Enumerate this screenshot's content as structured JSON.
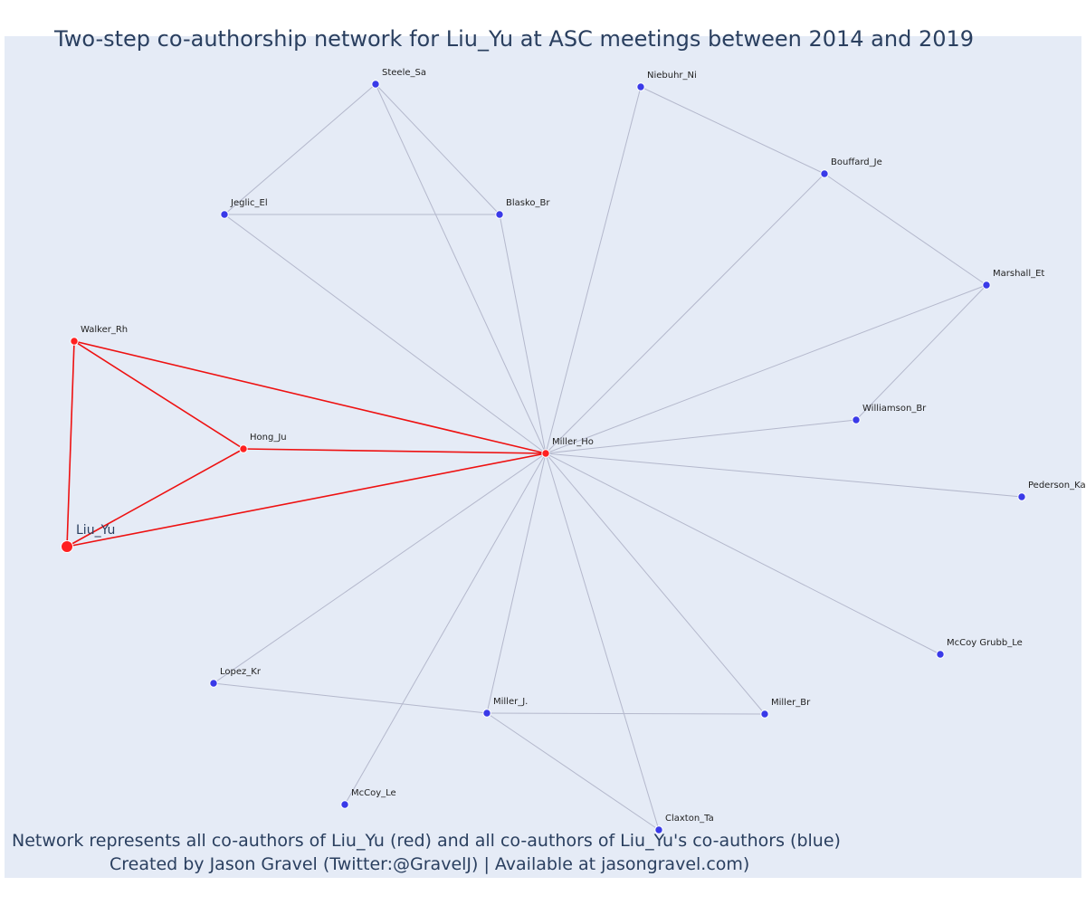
{
  "title": "Two-step co-authorship network for Liu_Yu at ASC meetings between 2014 and 2019",
  "caption_line1": "Network represents all co-authors of Liu_Yu (red) and all co-authors of Liu_Yu's co-authors (blue)",
  "caption_line2": "Created by Jason Gravel (Twitter:@GravelJ) | Available at jasongravel.com)",
  "colors": {
    "focal": "#ff2020",
    "coauthor": "#3a3ae8",
    "edge_primary": "#ee1111",
    "edge_secondary": "#b4b8cc",
    "background": "#e5ebf6",
    "text": "#2a3f5f"
  },
  "nodes": [
    {
      "id": "Liu_Yu",
      "label": "Liu_Yu",
      "group": "primary",
      "focal": true
    },
    {
      "id": "Walker_Rh",
      "label": "Walker_Rh",
      "group": "primary"
    },
    {
      "id": "Hong_Ju",
      "label": "Hong_Ju",
      "group": "primary"
    },
    {
      "id": "Miller_Ho",
      "label": "Miller_Ho",
      "group": "primary"
    },
    {
      "id": "Steele_Sa",
      "label": "Steele_Sa",
      "group": "secondary"
    },
    {
      "id": "Jeglic_El",
      "label": "Jeglic_El",
      "group": "secondary"
    },
    {
      "id": "Blasko_Br",
      "label": "Blasko_Br",
      "group": "secondary"
    },
    {
      "id": "Niebuhr_Ni",
      "label": "Niebuhr_Ni",
      "group": "secondary"
    },
    {
      "id": "Bouffard_Je",
      "label": "Bouffard_Je",
      "group": "secondary"
    },
    {
      "id": "Marshall_Et",
      "label": "Marshall_Et",
      "group": "secondary"
    },
    {
      "id": "Williamson_Br",
      "label": "Williamson_Br",
      "group": "secondary"
    },
    {
      "id": "Pederson_Ka",
      "label": "Pederson_Ka",
      "group": "secondary"
    },
    {
      "id": "McCoy Grubb_Le",
      "label": "McCoy Grubb_Le",
      "group": "secondary"
    },
    {
      "id": "Miller_Br",
      "label": "Miller_Br",
      "group": "secondary"
    },
    {
      "id": "Claxton_Ta",
      "label": "Claxton_Ta",
      "group": "secondary"
    },
    {
      "id": "Miller_J.",
      "label": "Miller_J.",
      "group": "secondary"
    },
    {
      "id": "McCoy_Le",
      "label": "McCoy_Le",
      "group": "secondary"
    },
    {
      "id": "Lopez_Kr",
      "label": "Lopez_Kr",
      "group": "secondary"
    }
  ],
  "edges": [
    [
      "Liu_Yu",
      "Walker_Rh"
    ],
    [
      "Liu_Yu",
      "Hong_Ju"
    ],
    [
      "Liu_Yu",
      "Miller_Ho"
    ],
    [
      "Walker_Rh",
      "Hong_Ju"
    ],
    [
      "Walker_Rh",
      "Miller_Ho"
    ],
    [
      "Hong_Ju",
      "Miller_Ho"
    ],
    [
      "Steele_Sa",
      "Jeglic_El"
    ],
    [
      "Steele_Sa",
      "Blasko_Br"
    ],
    [
      "Steele_Sa",
      "Miller_Ho"
    ],
    [
      "Jeglic_El",
      "Blasko_Br"
    ],
    [
      "Jeglic_El",
      "Miller_Ho"
    ],
    [
      "Blasko_Br",
      "Miller_Ho"
    ],
    [
      "Niebuhr_Ni",
      "Bouffard_Je"
    ],
    [
      "Niebuhr_Ni",
      "Miller_Ho"
    ],
    [
      "Bouffard_Je",
      "Marshall_Et"
    ],
    [
      "Bouffard_Je",
      "Miller_Ho"
    ],
    [
      "Marshall_Et",
      "Williamson_Br"
    ],
    [
      "Marshall_Et",
      "Miller_Ho"
    ],
    [
      "Williamson_Br",
      "Miller_Ho"
    ],
    [
      "Pederson_Ka",
      "Miller_Ho"
    ],
    [
      "McCoy Grubb_Le",
      "Miller_Ho"
    ],
    [
      "Miller_Br",
      "Miller_Ho"
    ],
    [
      "Claxton_Ta",
      "Miller_Ho"
    ],
    [
      "Miller_J.",
      "Miller_Ho"
    ],
    [
      "McCoy_Le",
      "Miller_Ho"
    ],
    [
      "Lopez_Kr",
      "Miller_Ho"
    ],
    [
      "Lopez_Kr",
      "Miller_J."
    ],
    [
      "Miller_J.",
      "Miller_Br"
    ],
    [
      "Miller_J.",
      "Claxton_Ta"
    ]
  ]
}
